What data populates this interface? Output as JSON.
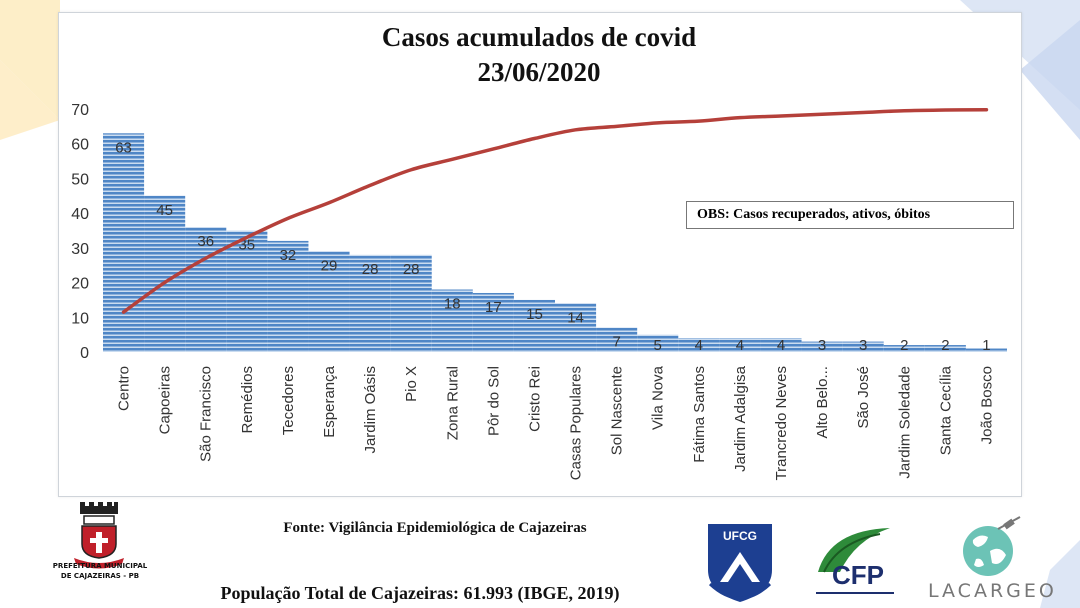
{
  "chart_data": {
    "type": "bar",
    "title": "Casos acumulados de covid",
    "subtitle": "23/06/2020",
    "categories": [
      "Centro",
      "Capoeiras",
      "São Francisco",
      "Remédios",
      "Tecedores",
      "Esperança",
      "Jardim Oásis",
      "Pio X",
      "Zona Rural",
      "Pôr do Sol",
      "Cristo Rei",
      "Casas Populares",
      "Sol Nascente",
      "Vila Nova",
      "Fátima Santos",
      "Jardim Adalgisa",
      "Trancredo Neves",
      "Alto Belo...",
      "São José",
      "Jardim Soledade",
      "Santa Cecília",
      "João Bosco"
    ],
    "values": [
      63,
      45,
      36,
      35,
      32,
      29,
      28,
      28,
      18,
      17,
      15,
      14,
      7,
      5,
      4,
      4,
      4,
      3,
      3,
      2,
      2,
      1
    ],
    "curve": {
      "description": "red cumulative trend curve",
      "values": [
        11.5,
        20,
        27,
        33,
        38.5,
        43,
        48,
        52.5,
        55.5,
        58.5,
        61.5,
        64,
        65,
        66,
        66.5,
        67.5,
        68,
        68.5,
        69,
        69.5,
        69.7,
        69.8
      ]
    },
    "ylim": [
      0,
      70
    ],
    "yticks": [
      0,
      10,
      20,
      30,
      40,
      50,
      60,
      70
    ],
    "colors": {
      "bar": "#4f86c6",
      "bar_stripe": "#e9f1fb",
      "curve": "#b5403a"
    },
    "grid": false,
    "annotation": "OBS: Casos recuperados, ativos, óbitos"
  },
  "footer": {
    "source": "Fonte: Vigilância  Epidemiológica  de Cajazeiras",
    "population": "População Total de Cajazeiras: 61.993 (IBGE, 2019)"
  },
  "logos": {
    "prefeitura_line1": "PREFEITURA MUNICIPAL",
    "prefeitura_line2": "DE CAJAZEIRAS - PB",
    "ufcg": "UFCG",
    "cfp": "CFP",
    "lacargeo": "LACARGEO"
  }
}
